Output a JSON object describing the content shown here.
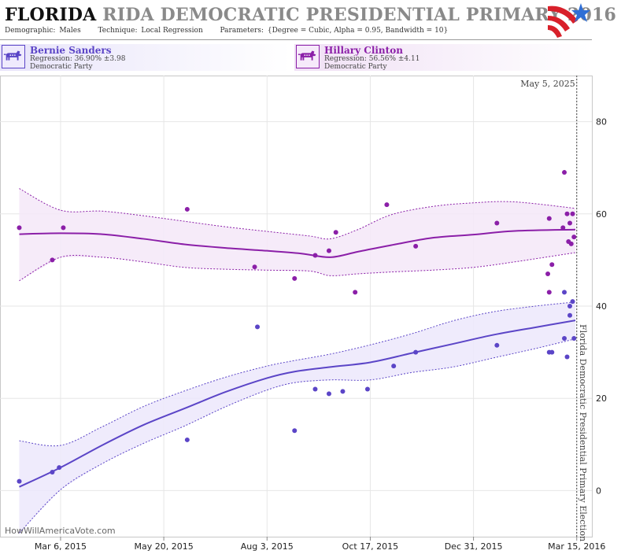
{
  "title": {
    "state": "FLORIDA",
    "rest": "RIDA DEMOCRATIC PRESIDENTIAL PRIMARY 2016"
  },
  "params": {
    "demographic_label": "Demographic:",
    "demographic": "Males",
    "technique_label": "Technique:",
    "technique": "Local Regression",
    "parameters_label": "Parameters:",
    "parameters": "{Degree = Cubic, Alpha = 0.95, Bandwidth = 10}"
  },
  "candidates": [
    {
      "name": "Bernie Sanders",
      "regression": "Regression: 36.90% ±3.98",
      "party": "Democratic Party",
      "color": "#5b45c7"
    },
    {
      "name": "Hillary Clinton",
      "regression": "Regression: 56.56% ±4.11",
      "party": "Democratic Party",
      "color": "#8b1fa8"
    }
  ],
  "watermark": "HowWillAmericaVote.com",
  "colors": {
    "sanders": "#5b45c7",
    "clinton": "#8b1fa8",
    "band_sanders": "#ece8fb",
    "band_clinton": "#f4e8f8"
  },
  "chart_data": {
    "type": "scatter",
    "title": "",
    "xlabel": "",
    "ylabel": "",
    "x_range": [
      "2015-01-21",
      "2016-03-26"
    ],
    "ylim": [
      -10,
      90
    ],
    "y_ticks": [
      0,
      20,
      40,
      60,
      80
    ],
    "x_ticks": [
      {
        "date": "2015-03-06",
        "label": "Mar 6, 2015"
      },
      {
        "date": "2015-05-20",
        "label": "May 20, 2015"
      },
      {
        "date": "2015-08-03",
        "label": "Aug 3, 2015"
      },
      {
        "date": "2015-10-17",
        "label": "Oct 17, 2015"
      },
      {
        "date": "2015-12-31",
        "label": "Dec 31, 2015"
      },
      {
        "date": "2016-03-15",
        "label": "Mar 15, 2016"
      }
    ],
    "grid": true,
    "event_line": {
      "date": "2016-03-15",
      "label": "Florida Democratic Presidential Primary Election"
    },
    "top_date_label": "May 5, 2025",
    "series": [
      {
        "name": "Hillary Clinton",
        "color": "#8b1fa8",
        "points": [
          [
            "2015-02-04",
            57
          ],
          [
            "2015-02-28",
            50
          ],
          [
            "2015-03-08",
            57
          ],
          [
            "2015-06-06",
            61
          ],
          [
            "2015-07-25",
            48.5
          ],
          [
            "2015-08-23",
            46
          ],
          [
            "2015-09-07",
            51
          ],
          [
            "2015-09-17",
            52
          ],
          [
            "2015-09-22",
            56
          ],
          [
            "2015-10-06",
            43
          ],
          [
            "2015-10-29",
            62
          ],
          [
            "2015-11-19",
            53
          ],
          [
            "2016-01-17",
            58
          ],
          [
            "2016-02-23",
            47
          ],
          [
            "2016-02-24",
            43
          ],
          [
            "2016-02-24",
            59
          ],
          [
            "2016-02-26",
            49
          ],
          [
            "2016-03-05",
            57
          ],
          [
            "2016-03-06",
            69
          ],
          [
            "2016-03-08",
            60
          ],
          [
            "2016-03-09",
            54
          ],
          [
            "2016-03-10",
            58
          ],
          [
            "2016-03-11",
            53.5
          ],
          [
            "2016-03-12",
            60
          ],
          [
            "2016-03-13",
            55
          ]
        ],
        "trend": [
          [
            "2015-02-04",
            55.6
          ],
          [
            "2015-03-06",
            55.8
          ],
          [
            "2015-04-05",
            55.6
          ],
          [
            "2015-05-05",
            54.6
          ],
          [
            "2015-06-04",
            53.4
          ],
          [
            "2015-07-04",
            52.6
          ],
          [
            "2015-08-03",
            52.0
          ],
          [
            "2015-08-28",
            51.4
          ],
          [
            "2015-09-18",
            50.6
          ],
          [
            "2015-10-08",
            51.8
          ],
          [
            "2015-11-01",
            53.2
          ],
          [
            "2015-12-01",
            54.8
          ],
          [
            "2015-12-31",
            55.5
          ],
          [
            "2016-01-30",
            56.3
          ],
          [
            "2016-03-14",
            56.6
          ]
        ],
        "band_upper": [
          [
            "2015-02-04",
            65.5
          ],
          [
            "2015-03-06",
            60.8
          ],
          [
            "2015-04-05",
            60.6
          ],
          [
            "2015-05-05",
            59.6
          ],
          [
            "2015-06-04",
            58.4
          ],
          [
            "2015-07-04",
            57.2
          ],
          [
            "2015-08-03",
            56.2
          ],
          [
            "2015-09-03",
            55.2
          ],
          [
            "2015-09-18",
            54.6
          ],
          [
            "2015-10-08",
            56.6
          ],
          [
            "2015-11-01",
            59.8
          ],
          [
            "2015-12-01",
            61.6
          ],
          [
            "2015-12-31",
            62.4
          ],
          [
            "2016-01-30",
            62.6
          ],
          [
            "2016-03-14",
            61.2
          ]
        ],
        "band_lower": [
          [
            "2015-02-04",
            45.5
          ],
          [
            "2015-03-06",
            50.6
          ],
          [
            "2015-04-05",
            50.6
          ],
          [
            "2015-05-05",
            49.6
          ],
          [
            "2015-06-04",
            48.4
          ],
          [
            "2015-07-04",
            48.0
          ],
          [
            "2015-08-03",
            47.8
          ],
          [
            "2015-09-03",
            47.6
          ],
          [
            "2015-09-18",
            46.6
          ],
          [
            "2015-10-08",
            47.0
          ],
          [
            "2015-11-01",
            47.4
          ],
          [
            "2015-12-01",
            47.8
          ],
          [
            "2015-12-31",
            48.4
          ],
          [
            "2016-01-30",
            49.6
          ],
          [
            "2016-03-14",
            51.6
          ]
        ]
      },
      {
        "name": "Bernie Sanders",
        "color": "#5b45c7",
        "points": [
          [
            "2015-02-04",
            2
          ],
          [
            "2015-02-28",
            4
          ],
          [
            "2015-03-05",
            5
          ],
          [
            "2015-06-06",
            11
          ],
          [
            "2015-07-27",
            35.5
          ],
          [
            "2015-08-23",
            13
          ],
          [
            "2015-09-07",
            22
          ],
          [
            "2015-09-17",
            21
          ],
          [
            "2015-09-27",
            21.5
          ],
          [
            "2015-10-15",
            22
          ],
          [
            "2015-11-03",
            27
          ],
          [
            "2015-11-19",
            30
          ],
          [
            "2016-01-17",
            31.5
          ],
          [
            "2016-02-24",
            30
          ],
          [
            "2016-02-26",
            30
          ],
          [
            "2016-03-06",
            33
          ],
          [
            "2016-03-06",
            43
          ],
          [
            "2016-03-08",
            29
          ],
          [
            "2016-03-10",
            38
          ],
          [
            "2016-03-10",
            40
          ],
          [
            "2016-03-12",
            41
          ],
          [
            "2016-03-13",
            33
          ]
        ],
        "trend": [
          [
            "2015-02-04",
            0.8
          ],
          [
            "2015-03-06",
            5.0
          ],
          [
            "2015-04-05",
            9.8
          ],
          [
            "2015-05-05",
            14.2
          ],
          [
            "2015-06-04",
            17.8
          ],
          [
            "2015-07-04",
            21.4
          ],
          [
            "2015-08-03",
            24.4
          ],
          [
            "2015-08-23",
            25.8
          ],
          [
            "2015-09-18",
            26.8
          ],
          [
            "2015-10-17",
            27.8
          ],
          [
            "2015-11-16",
            29.8
          ],
          [
            "2015-12-16",
            31.8
          ],
          [
            "2016-01-15",
            33.8
          ],
          [
            "2016-02-14",
            35.4
          ],
          [
            "2016-03-14",
            36.9
          ]
        ],
        "band_upper": [
          [
            "2015-02-04",
            10.8
          ],
          [
            "2015-03-06",
            9.8
          ],
          [
            "2015-04-05",
            13.8
          ],
          [
            "2015-05-05",
            18.2
          ],
          [
            "2015-06-04",
            21.6
          ],
          [
            "2015-07-04",
            24.6
          ],
          [
            "2015-08-03",
            27.0
          ],
          [
            "2015-08-23",
            28.2
          ],
          [
            "2015-09-18",
            29.6
          ],
          [
            "2015-10-17",
            31.6
          ],
          [
            "2015-11-16",
            34.0
          ],
          [
            "2015-12-16",
            36.8
          ],
          [
            "2016-01-15",
            38.8
          ],
          [
            "2016-02-14",
            40.0
          ],
          [
            "2016-03-14",
            40.9
          ]
        ],
        "band_lower": [
          [
            "2015-02-04",
            -9.2
          ],
          [
            "2015-03-06",
            0.2
          ],
          [
            "2015-04-05",
            5.8
          ],
          [
            "2015-05-05",
            10.2
          ],
          [
            "2015-06-04",
            14.0
          ],
          [
            "2015-07-04",
            18.2
          ],
          [
            "2015-08-03",
            21.8
          ],
          [
            "2015-08-23",
            23.4
          ],
          [
            "2015-09-18",
            24.0
          ],
          [
            "2015-10-17",
            24.0
          ],
          [
            "2015-11-16",
            25.6
          ],
          [
            "2015-12-16",
            26.8
          ],
          [
            "2016-01-15",
            28.8
          ],
          [
            "2016-02-14",
            30.8
          ],
          [
            "2016-03-14",
            32.9
          ]
        ]
      }
    ]
  }
}
